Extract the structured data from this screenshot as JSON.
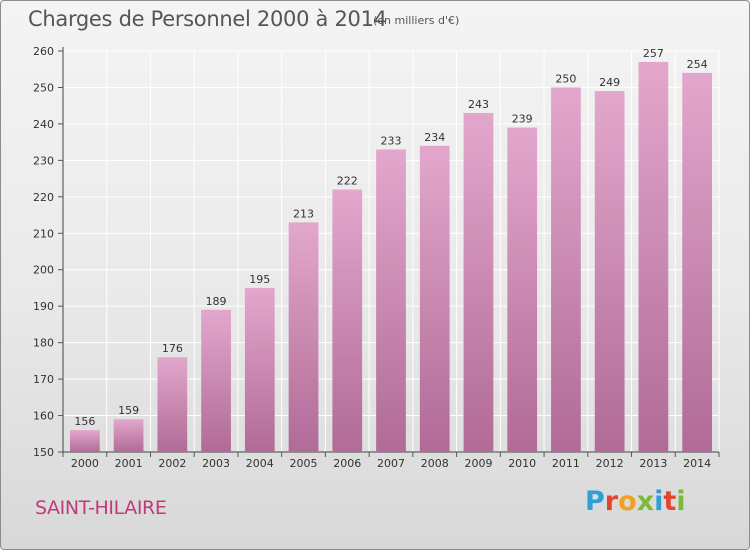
{
  "header": {
    "title": "Charges de Personnel 2000 à 2014",
    "subtitle": "(en milliers d'€)"
  },
  "footer": {
    "town": "SAINT-HILAIRE",
    "logo": "Proxiti"
  },
  "colors": {
    "bar_top": "#e3a7cc",
    "bar_bottom": "#b06b96",
    "town": "#c03a7a",
    "grid": "#ffffff",
    "logo_letters": [
      "#2f9fd8",
      "#e0472e",
      "#f0a21e",
      "#7fb93a",
      "#2f9fd8",
      "#e0472e",
      "#7fb93a"
    ]
  },
  "chart_data": {
    "type": "bar",
    "title": "Charges de Personnel 2000 à 2014",
    "subtitle": "(en milliers d'€)",
    "categories": [
      "2000",
      "2001",
      "2002",
      "2003",
      "2004",
      "2005",
      "2006",
      "2007",
      "2008",
      "2009",
      "2010",
      "2011",
      "2012",
      "2013",
      "2014"
    ],
    "values": [
      156,
      159,
      176,
      189,
      195,
      213,
      222,
      233,
      234,
      243,
      239,
      250,
      249,
      257,
      254
    ],
    "ylim": [
      150,
      260
    ],
    "yticks": [
      150,
      160,
      170,
      180,
      190,
      200,
      210,
      220,
      230,
      240,
      250,
      260
    ],
    "grid": true,
    "legend": "none"
  }
}
